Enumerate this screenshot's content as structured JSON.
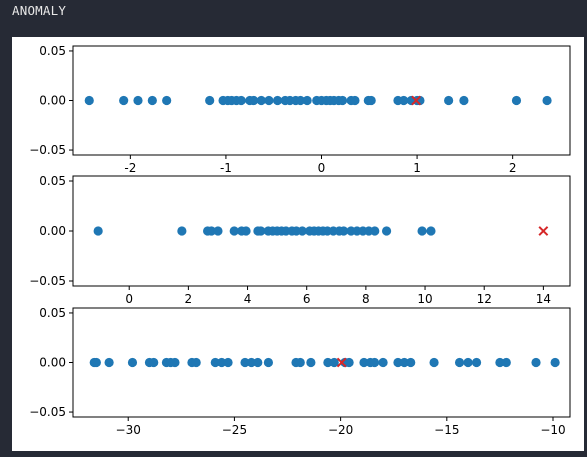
{
  "window": {
    "title": "ANOMALY"
  },
  "colors": {
    "normal": "#1f77b4",
    "anomaly": "#d62728",
    "axes": "#000000"
  },
  "chart_data": [
    {
      "type": "scatter",
      "xlim": [
        -2.6,
        2.6
      ],
      "ylim": [
        -0.055,
        0.055
      ],
      "xticks": [
        -2,
        -1,
        0,
        1,
        2
      ],
      "yticks": [
        0.05,
        0.0,
        -0.05
      ],
      "ytick_labels": [
        "0.05",
        "0.00",
        "−0.05"
      ],
      "x": [
        -2.43,
        -2.07,
        -1.92,
        -1.77,
        -1.62,
        -1.17,
        -1.03,
        -0.98,
        -0.94,
        -0.89,
        -0.84,
        -0.75,
        -0.71,
        -0.63,
        -0.55,
        -0.46,
        -0.38,
        -0.33,
        -0.27,
        -0.22,
        -0.15,
        -0.05,
        0.0,
        0.05,
        0.09,
        0.13,
        0.18,
        0.22,
        0.31,
        0.35,
        0.49,
        0.52,
        0.8,
        0.86,
        0.94,
        1.0,
        1.03,
        1.33,
        1.49,
        2.04,
        2.36
      ],
      "y": [
        0,
        0,
        0,
        0,
        0,
        0,
        0,
        0,
        0,
        0,
        0,
        0,
        0,
        0,
        0,
        0,
        0,
        0,
        0,
        0,
        0,
        0,
        0,
        0,
        0,
        0,
        0,
        0,
        0,
        0,
        0,
        0,
        0,
        0,
        0,
        0,
        0,
        0,
        0,
        0,
        0
      ],
      "anomaly": {
        "x": 0.99,
        "y": 0.0
      }
    },
    {
      "type": "scatter",
      "xlim": [
        -1.9,
        14.9
      ],
      "ylim": [
        -0.055,
        0.055
      ],
      "xticks": [
        0,
        2,
        4,
        6,
        8,
        10,
        12,
        14
      ],
      "yticks": [
        0.05,
        0.0,
        -0.05
      ],
      "ytick_labels": [
        "0.05",
        "0.00",
        "−0.05"
      ],
      "x": [
        -1.05,
        1.78,
        2.65,
        2.78,
        3.0,
        3.55,
        3.8,
        3.95,
        4.35,
        4.45,
        4.7,
        4.85,
        5.0,
        5.15,
        5.3,
        5.5,
        5.65,
        5.85,
        6.1,
        6.25,
        6.4,
        6.55,
        6.7,
        6.9,
        7.1,
        7.25,
        7.5,
        7.7,
        7.9,
        8.1,
        8.3,
        8.7,
        9.9,
        10.2
      ],
      "y": [
        0,
        0,
        0,
        0,
        0,
        0,
        0,
        0,
        0,
        0,
        0,
        0,
        0,
        0,
        0,
        0,
        0,
        0,
        0,
        0,
        0,
        0,
        0,
        0,
        0,
        0,
        0,
        0,
        0,
        0,
        0,
        0,
        0,
        0
      ],
      "anomaly": {
        "x": 14.0,
        "y": 0.0
      }
    },
    {
      "type": "scatter",
      "xlim": [
        -32.6,
        -9.2
      ],
      "ylim": [
        -0.055,
        0.055
      ],
      "xticks": [
        -30,
        -25,
        -20,
        -15,
        -10
      ],
      "xtick_labels": [
        "−30",
        "−25",
        "−20",
        "−15",
        "−10"
      ],
      "yticks": [
        0.05,
        0.0,
        -0.05
      ],
      "ytick_labels": [
        "0.05",
        "0.00",
        "−0.05"
      ],
      "x": [
        -31.6,
        -31.5,
        -30.9,
        -29.8,
        -29.0,
        -28.8,
        -28.2,
        -28.0,
        -27.8,
        -27.0,
        -26.8,
        -25.9,
        -25.6,
        -25.3,
        -24.5,
        -24.2,
        -23.9,
        -23.4,
        -22.1,
        -21.9,
        -21.4,
        -20.6,
        -20.3,
        -19.8,
        -19.6,
        -18.9,
        -18.6,
        -18.4,
        -18.0,
        -17.3,
        -17.0,
        -16.7,
        -15.6,
        -14.4,
        -14.0,
        -13.6,
        -12.5,
        -12.2,
        -10.8,
        -9.9
      ],
      "y": [
        0,
        0,
        0,
        0,
        0,
        0,
        0,
        0,
        0,
        0,
        0,
        0,
        0,
        0,
        0,
        0,
        0,
        0,
        0,
        0,
        0,
        0,
        0,
        0,
        0,
        0,
        0,
        0,
        0,
        0,
        0,
        0,
        0,
        0,
        0,
        0,
        0,
        0,
        0,
        0
      ],
      "anomaly": {
        "x": -19.95,
        "y": 0.0
      }
    }
  ]
}
